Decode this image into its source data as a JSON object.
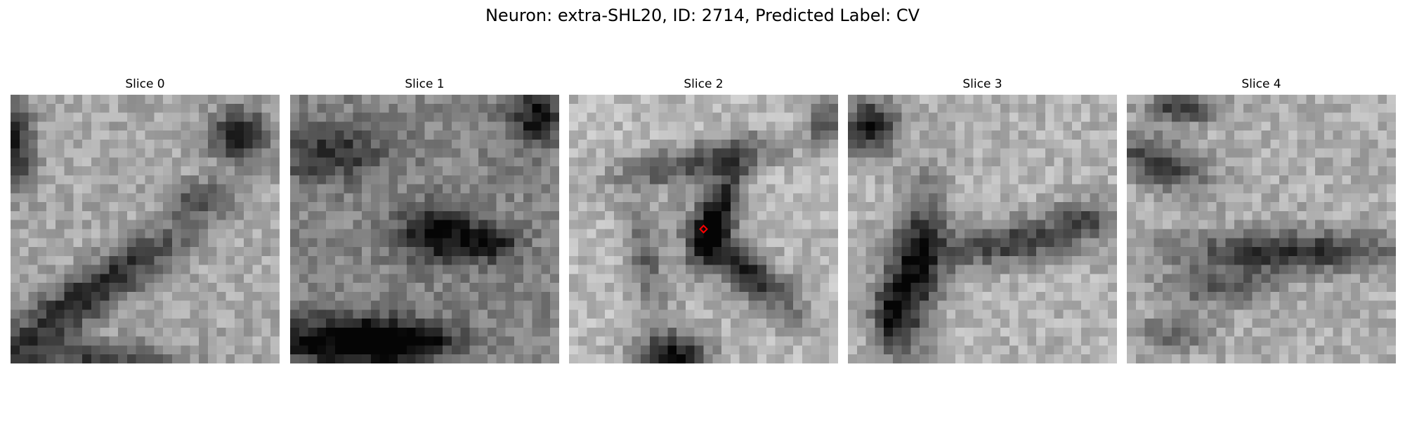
{
  "figure": {
    "suptitle": "Neuron: extra-SHL20, ID: 2714, Predicted Label: CV",
    "colormap": "gray",
    "grid_size": 30,
    "panels": [
      {
        "title": "Slice 0"
      },
      {
        "title": "Slice 1"
      },
      {
        "title": "Slice 2",
        "marker": {
          "shape": "diamond",
          "color": "#ff0000"
        }
      },
      {
        "title": "Slice 3"
      },
      {
        "title": "Slice 4"
      }
    ]
  }
}
